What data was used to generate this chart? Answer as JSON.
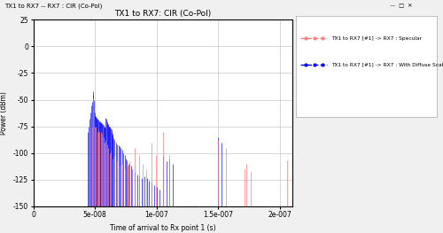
{
  "title": "TX1 to RX7: CIR (Co-Pol)",
  "xlabel": "Time of arrival to Rx point 1 (s)",
  "ylabel": "Power (dBm)",
  "window_title": "TX1 to RX7 -- RX7 : CIR (Co-Pol)",
  "legend_specular": "TX1 to RX7 [#1] -> RX7 : Specular",
  "legend_diffuse": "TX1 to RX7 [#1] -> RX7 : With Diffuse Scatter",
  "ylim": [
    -150,
    25
  ],
  "xlim": [
    0,
    2.1e-07
  ],
  "xticks": [
    0,
    5e-08,
    1e-07,
    1.5e-07,
    2e-07
  ],
  "xtick_labels": [
    "0",
    "5e-008",
    "1e-007",
    "1.5e-007",
    "2e-007"
  ],
  "yticks": [
    -150,
    -125,
    -100,
    -75,
    -50,
    -25,
    0,
    25
  ],
  "ytick_labels": [
    "-150",
    "-125",
    "-100",
    "-75",
    "-50",
    "-25",
    "0",
    "25"
  ],
  "bg_color": "#f0f0f0",
  "plot_bg_color": "#ffffff",
  "grid_color": "#c8c8c8",
  "red_color": "#ff8080",
  "blue_color": "#0000ff",
  "specular_times": [
    4.55e-08,
    4.75e-08,
    4.88e-08,
    5e-08,
    5.08e-08,
    5.18e-08,
    5.28e-08,
    5.38e-08,
    5.48e-08,
    5.58e-08,
    5.68e-08,
    5.78e-08,
    5.88e-08,
    5.98e-08,
    6.08e-08,
    6.18e-08,
    6.3e-08,
    6.42e-08,
    6.58e-08,
    6.78e-08,
    6.98e-08,
    7.2e-08,
    7.42e-08,
    7.62e-08,
    7.82e-08,
    8e-08,
    8.25e-08,
    8.55e-08,
    8.85e-08,
    9.15e-08,
    9.55e-08,
    9.95e-08,
    1.05e-07,
    1.1e-07,
    1.5e-07,
    1.56e-07,
    1.71e-07,
    1.73e-07,
    1.76e-07,
    2.06e-07
  ],
  "specular_powers": [
    -75,
    -75,
    -49,
    -75,
    -75,
    -80,
    -78,
    -80,
    -80,
    -82,
    -85,
    -90,
    -88,
    -92,
    -95,
    -100,
    -98,
    -105,
    -103,
    -108,
    -112,
    -110,
    -115,
    -112,
    -108,
    -115,
    -95,
    -102,
    -110,
    -115,
    -90,
    -102,
    -80,
    -102,
    -88,
    -95,
    -115,
    -110,
    -118,
    -107
  ],
  "diffuse_times": [
    4.42e-08,
    4.5e-08,
    4.58e-08,
    4.66e-08,
    4.72e-08,
    4.78e-08,
    4.84e-08,
    4.88e-08,
    4.92e-08,
    4.96e-08,
    5e-08,
    5.04e-08,
    5.08e-08,
    5.12e-08,
    5.16e-08,
    5.2e-08,
    5.24e-08,
    5.28e-08,
    5.32e-08,
    5.36e-08,
    5.4e-08,
    5.44e-08,
    5.48e-08,
    5.52e-08,
    5.56e-08,
    5.6e-08,
    5.64e-08,
    5.68e-08,
    5.72e-08,
    5.76e-08,
    5.8e-08,
    5.84e-08,
    5.88e-08,
    5.92e-08,
    5.96e-08,
    6e-08,
    6.04e-08,
    6.08e-08,
    6.12e-08,
    6.16e-08,
    6.2e-08,
    6.24e-08,
    6.28e-08,
    6.32e-08,
    6.36e-08,
    6.4e-08,
    6.46e-08,
    6.52e-08,
    6.6e-08,
    6.7e-08,
    6.8e-08,
    6.9e-08,
    7e-08,
    7.1e-08,
    7.2e-08,
    7.3e-08,
    7.4e-08,
    7.5e-08,
    7.6e-08,
    7.7e-08,
    7.8e-08,
    7.9e-08,
    8e-08,
    8.2e-08,
    8.4e-08,
    8.6e-08,
    8.8e-08,
    9e-08,
    9.2e-08,
    9.4e-08,
    9.6e-08,
    9.8e-08,
    1e-07,
    1.02e-07,
    1.05e-07,
    1.08e-07,
    1.1e-07,
    1.13e-07,
    1.5e-07,
    1.525e-07
  ],
  "diffuse_powers": [
    -80,
    -75,
    -68,
    -62,
    -55,
    -52,
    -45,
    -42,
    -50,
    -62,
    -65,
    -65,
    -66,
    -67,
    -68,
    -68,
    -69,
    -69,
    -70,
    -70,
    -70,
    -71,
    -71,
    -72,
    -72,
    -73,
    -73,
    -74,
    -75,
    -75,
    -76,
    -76,
    -67,
    -68,
    -70,
    -72,
    -73,
    -74,
    -75,
    -75,
    -75,
    -76,
    -77,
    -78,
    -80,
    -82,
    -84,
    -86,
    -88,
    -90,
    -92,
    -93,
    -94,
    -95,
    -97,
    -100,
    -102,
    -105,
    -107,
    -110,
    -110,
    -112,
    -115,
    -118,
    -120,
    -122,
    -124,
    -122,
    -124,
    -126,
    -128,
    -130,
    -132,
    -134,
    -103,
    -108,
    -105,
    -110,
    -85,
    -90
  ]
}
